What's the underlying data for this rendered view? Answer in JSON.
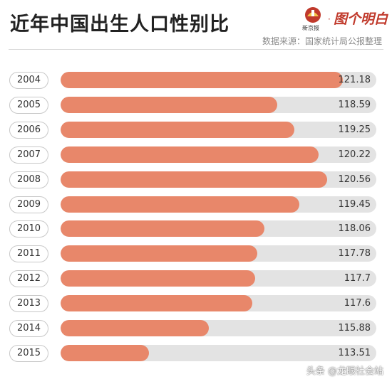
{
  "title": "近年中国出生人口性别比",
  "source": "数据来源：国家统计局公报整理",
  "logo": {
    "emblem_label": "新京报",
    "brand": "图个明白",
    "icon": "newspaper-emblem-icon"
  },
  "watermark": "头条 @龙眼社会站",
  "colors": {
    "bar": "#e8876a",
    "track": "#e3e3e3",
    "title": "#222222"
  },
  "chart_data": {
    "type": "bar",
    "orientation": "horizontal",
    "title": "近年中国出生人口性别比",
    "categories": [
      "2004",
      "2005",
      "2006",
      "2007",
      "2008",
      "2009",
      "2010",
      "2011",
      "2012",
      "2013",
      "2014",
      "2015"
    ],
    "values": [
      121.18,
      118.59,
      119.25,
      120.22,
      120.56,
      119.45,
      118.06,
      117.78,
      117.7,
      117.6,
      115.88,
      113.51
    ],
    "value_labels": [
      "121.18",
      "118.59",
      "119.25",
      "120.22",
      "120.56",
      "119.45",
      "118.06",
      "117.78",
      "117.7",
      "117.6",
      "115.88",
      "113.51"
    ],
    "xlabel": "",
    "ylabel": "",
    "grid": false
  }
}
